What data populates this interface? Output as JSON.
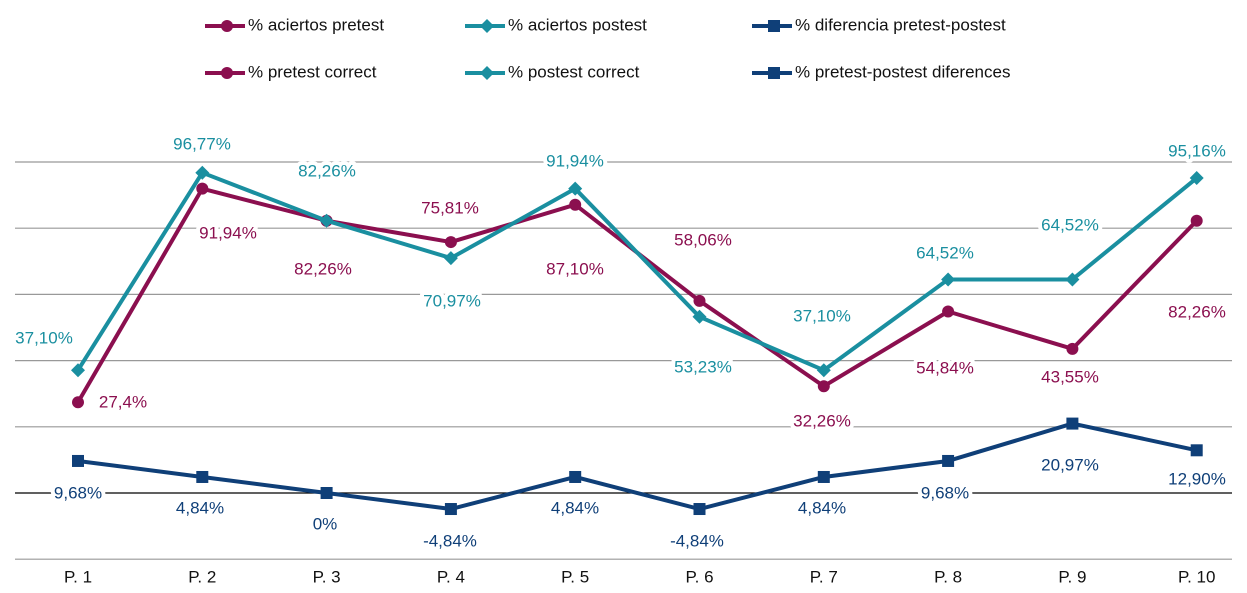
{
  "chart_data": {
    "type": "line",
    "categories": [
      "P. 1",
      "P. 2",
      "P. 3",
      "P. 4",
      "P. 5",
      "P. 6",
      "P. 7",
      "P. 8",
      "P. 9",
      "P. 10"
    ],
    "ylim": [
      -20,
      100
    ],
    "yticks": [
      -20,
      0,
      20,
      40,
      60,
      80,
      100
    ],
    "grid": true,
    "series": [
      {
        "name": "% aciertos pretest",
        "name_en": "% pretest correct",
        "color": "#8b0f4f",
        "marker": "circle",
        "values": [
          27.4,
          91.94,
          82.26,
          75.81,
          87.1,
          58.06,
          32.26,
          54.84,
          43.55,
          82.26
        ],
        "value_labels": [
          "27,4%",
          "91,94%",
          "82,26%",
          "75,81%",
          "87,10%",
          "58,06%",
          "32,26%",
          "54,84%",
          "43,55%",
          "82,26%"
        ]
      },
      {
        "name": "% aciertos postest",
        "name_en": "% postest correct",
        "color": "#1a8fa0",
        "marker": "diamond",
        "values": [
          37.1,
          96.77,
          82.26,
          70.97,
          91.94,
          53.23,
          37.1,
          64.52,
          64.52,
          95.16
        ],
        "value_labels": [
          "37,10%",
          "96,77%",
          "82,26%",
          "70,97%",
          "91,94%",
          "53,23%",
          "37,10%",
          "64,52%",
          "64,52%",
          "95,16%"
        ]
      },
      {
        "name": "% diferencia pretest-postest",
        "name_en": "% pretest-postest diferences",
        "color": "#0f3f78",
        "marker": "square",
        "values": [
          9.68,
          4.84,
          0,
          -4.84,
          4.84,
          -4.84,
          4.84,
          9.68,
          20.97,
          12.9
        ],
        "value_labels": [
          "9,68%",
          "4,84%",
          "0%",
          "-4,84%",
          "4,84%",
          "-4,84%",
          "4,84%",
          "9,68%",
          "20,97%",
          "12,90%"
        ]
      }
    ]
  }
}
